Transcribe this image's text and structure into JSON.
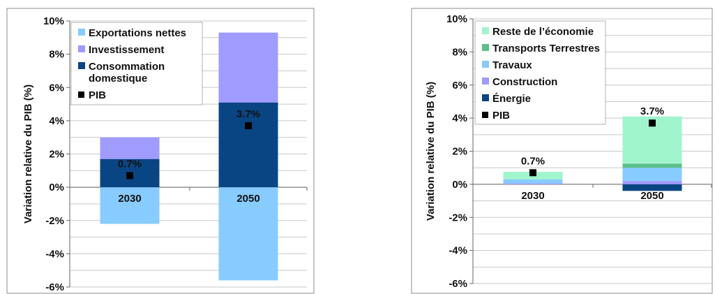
{
  "chart_data": [
    {
      "type": "bar",
      "stacked": true,
      "ylabel": "Variation relative du PIB (%)",
      "ylim": [
        -6,
        10
      ],
      "yticks": [
        "-6%",
        "-4%",
        "-2%",
        "0%",
        "2%",
        "4%",
        "6%",
        "8%",
        "10%"
      ],
      "categories": [
        "2030",
        "2050"
      ],
      "legend_position": "top-left",
      "series": [
        {
          "name": "Exportations nettes",
          "color": "#87cbff",
          "values": [
            -2.2,
            -5.6
          ]
        },
        {
          "name": "Consommation domestique",
          "color": "#0a4583",
          "values": [
            1.7,
            5.1
          ]
        },
        {
          "name": "Investissement",
          "color": "#9f9bff",
          "values": [
            1.3,
            4.2
          ]
        }
      ],
      "legend": [
        {
          "name": "Exportations nettes",
          "color": "#87cbff",
          "marker": "square"
        },
        {
          "name": "Investissement",
          "color": "#9f9bff",
          "marker": "square"
        },
        {
          "name": "Consommation domestique",
          "color": "#0a4583",
          "marker": "square",
          "lines": [
            "Consommation",
            "domestique"
          ]
        },
        {
          "name": "PIB",
          "color": "#000000",
          "marker": "point"
        }
      ],
      "pib": {
        "name": "PIB",
        "values": [
          0.7,
          3.7
        ],
        "labels": [
          "0.7%",
          "3.7%"
        ]
      }
    },
    {
      "type": "bar",
      "stacked": true,
      "ylabel": "Variation relative du PIB (%)",
      "ylim": [
        -6,
        10
      ],
      "yticks": [
        "-6%",
        "-4%",
        "-2%",
        "0%",
        "2%",
        "4%",
        "6%",
        "8%",
        "10%"
      ],
      "categories": [
        "2030",
        "2050"
      ],
      "legend_position": "top-left",
      "series": [
        {
          "name": "Énergie",
          "color": "#0a4583",
          "values": [
            0.0,
            -0.4
          ]
        },
        {
          "name": "Construction",
          "color": "#9f9bff",
          "values": [
            0.05,
            0.2
          ]
        },
        {
          "name": "Travaux",
          "color": "#87cbff",
          "values": [
            0.25,
            0.8
          ]
        },
        {
          "name": "Transports Terrestres",
          "color": "#5bbf88",
          "values": [
            0.0,
            0.25
          ]
        },
        {
          "name": "Reste de l’économie",
          "color": "#a0f5cc",
          "values": [
            0.45,
            2.85
          ]
        }
      ],
      "legend": [
        {
          "name": "Reste de l’économie",
          "color": "#a0f5cc",
          "marker": "square"
        },
        {
          "name": "Transports Terrestres",
          "color": "#5bbf88",
          "marker": "square"
        },
        {
          "name": "Travaux",
          "color": "#87cbff",
          "marker": "square"
        },
        {
          "name": "Construction",
          "color": "#9f9bff",
          "marker": "square"
        },
        {
          "name": "Énergie",
          "color": "#0a4583",
          "marker": "square"
        },
        {
          "name": "PIB",
          "color": "#000000",
          "marker": "point"
        }
      ],
      "pib": {
        "name": "PIB",
        "values": [
          0.7,
          3.7
        ],
        "labels": [
          "0.7%",
          "3.7%"
        ]
      }
    }
  ]
}
